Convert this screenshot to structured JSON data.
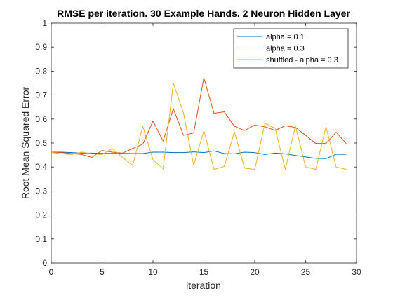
{
  "chart_data": {
    "type": "line",
    "title": "RMSE per iteration. 30 Example Hands. 2 Neuron Hidden Layer",
    "xlabel": "iteration",
    "ylabel": "Root Mean Squared Error",
    "xlim": [
      0,
      30
    ],
    "ylim": [
      0,
      1
    ],
    "xticks": [
      0,
      5,
      10,
      15,
      20,
      25,
      30
    ],
    "yticks": [
      0,
      0.1,
      0.2,
      0.3,
      0.4,
      0.5,
      0.6,
      0.7,
      0.8,
      0.9,
      1
    ],
    "grid": false,
    "legend_position": "top-right",
    "x": [
      0,
      1,
      2,
      3,
      4,
      5,
      6,
      7,
      8,
      9,
      10,
      11,
      12,
      13,
      14,
      15,
      16,
      17,
      18,
      19,
      20,
      21,
      22,
      23,
      24,
      25,
      26,
      27,
      28,
      29
    ],
    "series": [
      {
        "name": "alpha = 0.1",
        "color": "#0072BD",
        "values": [
          0.462,
          0.462,
          0.46,
          0.458,
          0.458,
          0.457,
          0.457,
          0.457,
          0.456,
          0.456,
          0.462,
          0.462,
          0.46,
          0.46,
          0.463,
          0.46,
          0.467,
          0.456,
          0.455,
          0.462,
          0.46,
          0.452,
          0.458,
          0.455,
          0.448,
          0.442,
          0.436,
          0.435,
          0.453,
          0.453
        ]
      },
      {
        "name": "alpha = 0.3",
        "color": "#D95319",
        "values": [
          0.462,
          0.46,
          0.456,
          0.452,
          0.44,
          0.469,
          0.462,
          0.458,
          0.477,
          0.495,
          0.592,
          0.508,
          0.643,
          0.532,
          0.542,
          0.772,
          0.624,
          0.63,
          0.57,
          0.552,
          0.575,
          0.568,
          0.553,
          0.572,
          0.565,
          0.532,
          0.498,
          0.498,
          0.545,
          0.497
        ]
      },
      {
        "name": "shuffled - alpha = 0.3",
        "color": "#EDB120",
        "values": [
          0.461,
          0.455,
          0.452,
          0.462,
          0.455,
          0.452,
          0.477,
          0.44,
          0.406,
          0.57,
          0.43,
          0.392,
          0.75,
          0.625,
          0.407,
          0.552,
          0.39,
          0.402,
          0.547,
          0.395,
          0.39,
          0.582,
          0.562,
          0.39,
          0.572,
          0.4,
          0.39,
          0.568,
          0.4,
          0.39
        ]
      }
    ]
  }
}
